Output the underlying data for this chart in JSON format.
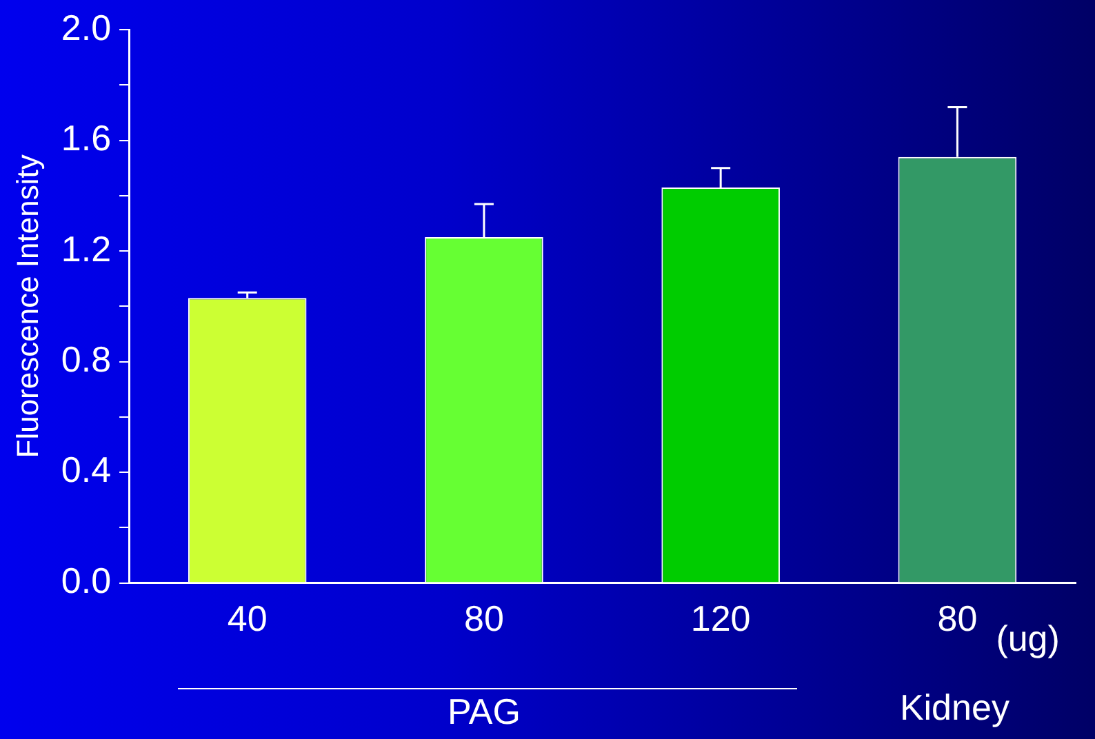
{
  "chart_data": {
    "type": "bar",
    "ylabel": "Fluorescence Intensity",
    "categories": [
      "40",
      "80",
      "120",
      "80"
    ],
    "values": [
      1.03,
      1.25,
      1.43,
      1.54
    ],
    "colors": [
      "#ccff33",
      "#66ff33",
      "#00cc00",
      "#339966"
    ],
    "errors": [
      [
        1.03,
        1.05
      ],
      [
        1.25,
        1.37
      ],
      [
        1.43,
        1.5
      ],
      [
        1.54,
        1.72
      ]
    ],
    "ylim": [
      0,
      2.0
    ],
    "yticks": [
      {
        "value": 0,
        "label": "0.0"
      },
      {
        "value": 0.2,
        "label": null
      },
      {
        "value": 0.4,
        "label": "0.4"
      },
      {
        "value": 0.6,
        "label": null
      },
      {
        "value": 0.8,
        "label": "0.8"
      },
      {
        "value": 1.0,
        "label": null
      },
      {
        "value": 1.2,
        "label": "1.2"
      },
      {
        "value": 1.4,
        "label": null
      },
      {
        "value": 1.6,
        "label": "1.6"
      },
      {
        "value": 1.8,
        "label": null
      },
      {
        "value": 2.0,
        "label": "2.0"
      }
    ],
    "grid": false,
    "legend": false,
    "annotations": [
      "(ug)",
      "PAG",
      "Kidney"
    ]
  }
}
